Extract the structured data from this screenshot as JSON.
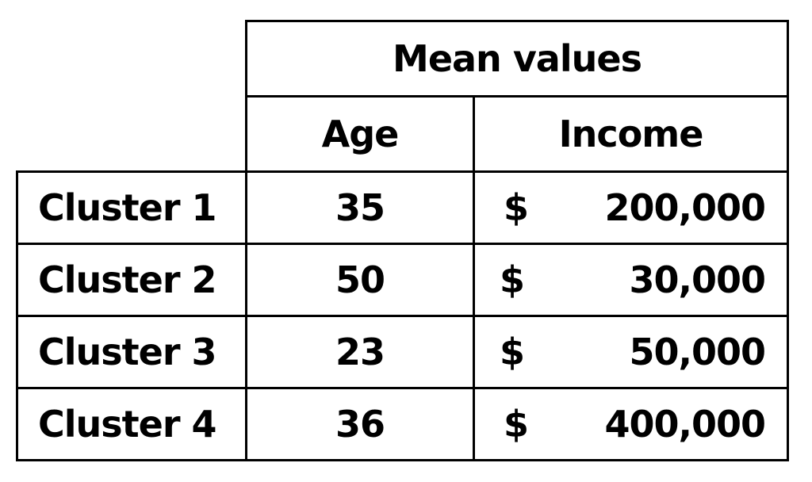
{
  "table": {
    "group_header": "Mean values",
    "columns": [
      "Age",
      "Income"
    ],
    "rows": [
      {
        "label": "Cluster 1",
        "age": "35",
        "currency": "$",
        "income": "200,000"
      },
      {
        "label": "Cluster 2",
        "age": "50",
        "currency": "$",
        "income": "30,000"
      },
      {
        "label": "Cluster 3",
        "age": "23",
        "currency": "$",
        "income": "50,000"
      },
      {
        "label": "Cluster 4",
        "age": "36",
        "currency": "$",
        "income": "400,000"
      }
    ]
  }
}
